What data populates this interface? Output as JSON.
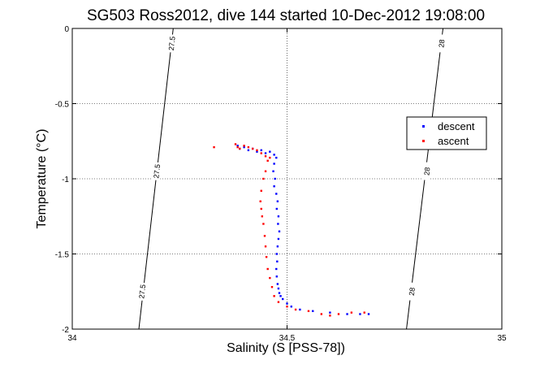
{
  "chart_data": {
    "type": "scatter",
    "title": "SG503 Ross2012, dive 144 started 10-Dec-2012 19:08:00",
    "xlabel": "Salinity (S [PSS-78])",
    "ylabel": "Temperature (°C)",
    "xlim": [
      34,
      35
    ],
    "ylim": [
      -2,
      0
    ],
    "xticks": [
      34,
      34.5,
      35
    ],
    "yticks": [
      0,
      -0.5,
      -1,
      -1.5,
      -2
    ],
    "xtick_labels": [
      "34",
      "34.5",
      "35"
    ],
    "ytick_labels": [
      "0",
      "-0.5",
      "-1",
      "-1.5",
      "-2"
    ],
    "grid": true,
    "legend_position": "right",
    "isopycnals": [
      {
        "label": "27.5",
        "points": [
          [
            34.235,
            0
          ],
          [
            34.155,
            -2
          ]
        ],
        "label_positions": [
          [
            34.232,
            -0.1
          ],
          [
            34.197,
            -0.95
          ],
          [
            34.163,
            -1.75
          ]
        ]
      },
      {
        "label": "28",
        "points": [
          [
            34.863,
            0
          ],
          [
            34.778,
            -2
          ]
        ],
        "label_positions": [
          [
            34.86,
            -0.1
          ],
          [
            34.826,
            -0.95
          ],
          [
            34.791,
            -1.75
          ]
        ]
      }
    ],
    "series": [
      {
        "name": "descent",
        "color": "#0000ff",
        "points": [
          [
            34.385,
            -0.78
          ],
          [
            34.39,
            -0.8
          ],
          [
            34.4,
            -0.79
          ],
          [
            34.41,
            -0.81
          ],
          [
            34.42,
            -0.8
          ],
          [
            34.43,
            -0.82
          ],
          [
            34.44,
            -0.81
          ],
          [
            34.45,
            -0.83
          ],
          [
            34.46,
            -0.82
          ],
          [
            34.47,
            -0.84
          ],
          [
            34.475,
            -0.86
          ],
          [
            34.47,
            -0.9
          ],
          [
            34.468,
            -0.95
          ],
          [
            34.472,
            -1.0
          ],
          [
            34.47,
            -1.05
          ],
          [
            34.475,
            -1.1
          ],
          [
            34.478,
            -1.15
          ],
          [
            34.476,
            -1.2
          ],
          [
            34.48,
            -1.25
          ],
          [
            34.479,
            -1.3
          ],
          [
            34.482,
            -1.35
          ],
          [
            34.48,
            -1.4
          ],
          [
            34.478,
            -1.45
          ],
          [
            34.476,
            -1.5
          ],
          [
            34.477,
            -1.55
          ],
          [
            34.475,
            -1.6
          ],
          [
            34.476,
            -1.65
          ],
          [
            34.478,
            -1.7
          ],
          [
            34.48,
            -1.73
          ],
          [
            34.482,
            -1.76
          ],
          [
            34.485,
            -1.78
          ],
          [
            34.49,
            -1.8
          ],
          [
            34.5,
            -1.83
          ],
          [
            34.51,
            -1.85
          ],
          [
            34.53,
            -1.87
          ],
          [
            34.56,
            -1.88
          ],
          [
            34.6,
            -1.89
          ],
          [
            34.64,
            -1.9
          ],
          [
            34.67,
            -1.9
          ],
          [
            34.69,
            -1.9
          ]
        ]
      },
      {
        "name": "ascent",
        "color": "#ff0000",
        "points": [
          [
            34.33,
            -0.79
          ],
          [
            34.38,
            -0.77
          ],
          [
            34.385,
            -0.79
          ],
          [
            34.39,
            -0.8
          ],
          [
            34.4,
            -0.78
          ],
          [
            34.41,
            -0.79
          ],
          [
            34.42,
            -0.8
          ],
          [
            34.43,
            -0.81
          ],
          [
            34.44,
            -0.83
          ],
          [
            34.45,
            -0.85
          ],
          [
            34.46,
            -0.86
          ],
          [
            34.455,
            -0.88
          ],
          [
            34.45,
            -0.95
          ],
          [
            34.445,
            -1.0
          ],
          [
            34.44,
            -1.08
          ],
          [
            34.438,
            -1.15
          ],
          [
            34.44,
            -1.2
          ],
          [
            34.442,
            -1.25
          ],
          [
            34.445,
            -1.3
          ],
          [
            34.448,
            -1.38
          ],
          [
            34.45,
            -1.45
          ],
          [
            34.452,
            -1.52
          ],
          [
            34.455,
            -1.6
          ],
          [
            34.46,
            -1.66
          ],
          [
            34.465,
            -1.72
          ],
          [
            34.47,
            -1.78
          ],
          [
            34.48,
            -1.82
          ],
          [
            34.5,
            -1.85
          ],
          [
            34.52,
            -1.87
          ],
          [
            34.55,
            -1.88
          ],
          [
            34.58,
            -1.9
          ],
          [
            34.6,
            -1.91
          ],
          [
            34.62,
            -1.9
          ],
          [
            34.65,
            -1.89
          ],
          [
            34.68,
            -1.89
          ]
        ]
      }
    ]
  }
}
